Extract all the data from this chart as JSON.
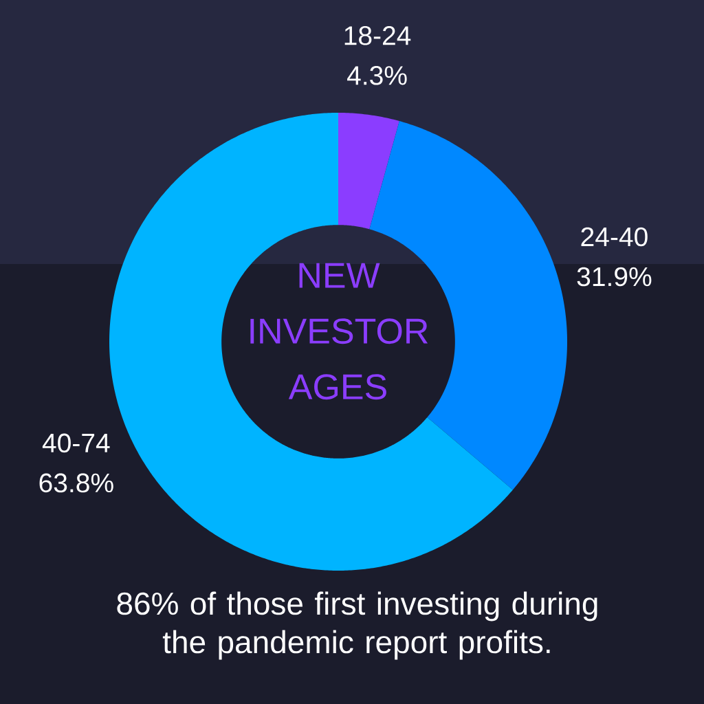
{
  "chart_data": {
    "type": "donut",
    "title": "NEW INVESTOR AGES",
    "categories": [
      "18-24",
      "24-40",
      "40-74"
    ],
    "values": [
      4.3,
      31.9,
      63.8
    ],
    "colors": [
      "#8b3dff",
      "#0088ff",
      "#00b4ff"
    ],
    "value_labels": [
      "4.3%",
      "31.9%",
      "63.8%"
    ],
    "annotations": [
      "86% of those first investing during the pandemic report profits."
    ]
  }
}
